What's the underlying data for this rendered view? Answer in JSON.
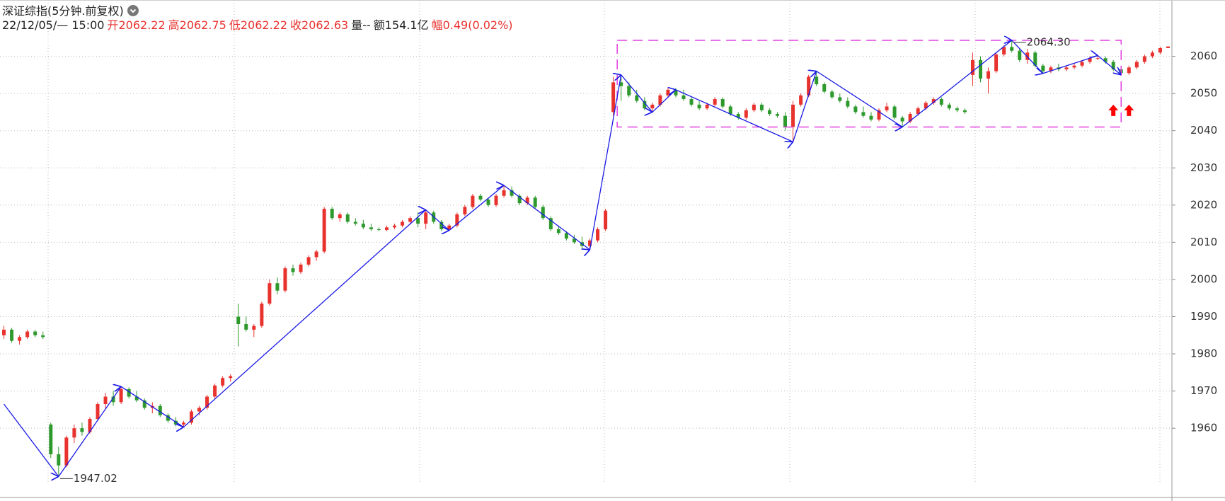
{
  "chart_data": {
    "type": "candlestick",
    "title": "深证综指(5分钟.前复权)",
    "time": "22/12/05/— 15:00",
    "info": [
      {
        "label": "开",
        "value": "2062.22",
        "color": "#e8322e"
      },
      {
        "label": "高",
        "value": "2062.75",
        "color": "#e8322e"
      },
      {
        "label": "低",
        "value": "2062.22",
        "color": "#e8322e"
      },
      {
        "label": "收",
        "value": "2062.63",
        "color": "#e8322e"
      },
      {
        "label": "量",
        "value": "--",
        "color": "#222222"
      },
      {
        "label": "额",
        "value": "154.1亿",
        "color": "#222222"
      },
      {
        "label": "幅",
        "value": "0.49(0.02%)",
        "color": "#e8322e"
      }
    ],
    "up_color": "#e8322e",
    "down_color": "#2e9a2e",
    "ylim": [
      1945,
      2074
    ],
    "yticks": [
      1960,
      1970,
      1980,
      1990,
      2000,
      2010,
      2020,
      2030,
      2040,
      2050,
      2060
    ],
    "grid": true,
    "ohlc": [
      [
        1985,
        1987.5,
        1984,
        1986.5
      ],
      [
        1986.5,
        1987,
        1983,
        1983.5
      ],
      [
        1983.5,
        1985,
        1982.5,
        1984.5
      ],
      [
        1984.5,
        1986.5,
        1984,
        1986
      ],
      [
        1986,
        1986.5,
        1984.5,
        1985
      ],
      [
        1985,
        1986,
        1984,
        1984.5
      ],
      [
        1961,
        1961.5,
        1952,
        1953
      ],
      [
        1953,
        1955,
        1947.02,
        1950
      ],
      [
        1950,
        1958,
        1949.5,
        1957.5
      ],
      [
        1957.5,
        1961,
        1956,
        1960
      ],
      [
        1960,
        1961.5,
        1958,
        1959
      ],
      [
        1959,
        1963,
        1958.5,
        1962.5
      ],
      [
        1962.5,
        1967,
        1962,
        1966.5
      ],
      [
        1966.5,
        1969.5,
        1965,
        1968.5
      ],
      [
        1968.5,
        1970,
        1966,
        1967
      ],
      [
        1967,
        1971.2,
        1966.5,
        1970.5
      ],
      [
        1970.5,
        1971,
        1968,
        1968.5
      ],
      [
        1968.5,
        1970,
        1967,
        1967.5
      ],
      [
        1967.5,
        1968,
        1965,
        1965.5
      ],
      [
        1965.5,
        1967,
        1964,
        1966
      ],
      [
        1966,
        1966.5,
        1963,
        1963.5
      ],
      [
        1963.5,
        1964,
        1961.5,
        1962
      ],
      [
        1962,
        1963,
        1960.5,
        1961
      ],
      [
        1961,
        1962,
        1960.3,
        1961.5
      ],
      [
        1961.5,
        1965,
        1961,
        1964.5
      ],
      [
        1964.5,
        1966,
        1963.5,
        1965.5
      ],
      [
        1965.5,
        1969,
        1965,
        1968.5
      ],
      [
        1968.5,
        1972,
        1968,
        1971.5
      ],
      [
        1971.5,
        1974,
        1971,
        1973.5
      ],
      [
        1973.5,
        1974.5,
        1972.5,
        1974
      ],
      [
        1990,
        1993.5,
        1982,
        1988
      ],
      [
        1988,
        1990,
        1986,
        1986.5
      ],
      [
        1986.5,
        1988,
        1984.5,
        1987.5
      ],
      [
        1987.5,
        1994,
        1987,
        1993.5
      ],
      [
        1993.5,
        2000,
        1993,
        1999
      ],
      [
        1999,
        2000.5,
        1996,
        1997
      ],
      [
        1997,
        2003.5,
        1996.5,
        2003
      ],
      [
        2003,
        2004,
        2001,
        2002
      ],
      [
        2002,
        2004.5,
        2001.5,
        2004
      ],
      [
        2004,
        2006.5,
        2003.5,
        2006
      ],
      [
        2006,
        2008,
        2005,
        2007.5
      ],
      [
        2007.5,
        2019.5,
        2007,
        2019
      ],
      [
        2019,
        2019.5,
        2016,
        2016.5
      ],
      [
        2016.5,
        2018,
        2015.5,
        2017.5
      ],
      [
        2017.5,
        2018,
        2015,
        2015.5
      ],
      [
        2015.5,
        2016.5,
        2014.5,
        2015
      ],
      [
        2015,
        2016,
        2013.5,
        2014
      ],
      [
        2014,
        2015,
        2013,
        2013.5
      ],
      [
        2013.5,
        2014,
        2013,
        2013.3
      ],
      [
        2013.3,
        2014.5,
        2013,
        2014
      ],
      [
        2014,
        2015,
        2013.5,
        2014.5
      ],
      [
        2014.5,
        2016,
        2014,
        2015.5
      ],
      [
        2015.5,
        2017,
        2015,
        2016.5
      ],
      [
        2016.5,
        2018,
        2014,
        2015
      ],
      [
        2015,
        2018.7,
        2013.5,
        2018
      ],
      [
        2018,
        2018.5,
        2015,
        2015.5
      ],
      [
        2015.5,
        2016,
        2013,
        2013.5
      ],
      [
        2013.5,
        2015,
        2013.2,
        2014.5
      ],
      [
        2014.5,
        2018,
        2014,
        2017.5
      ],
      [
        2017.5,
        2020,
        2017,
        2019.5
      ],
      [
        2019.5,
        2023,
        2019,
        2022.5
      ],
      [
        2022.5,
        2023,
        2021,
        2021.5
      ],
      [
        2021.5,
        2022,
        2019.5,
        2020
      ],
      [
        2020,
        2023,
        2019.5,
        2022.5
      ],
      [
        2022.5,
        2025.3,
        2022,
        2024
      ],
      [
        2024,
        2025,
        2022,
        2022.5
      ],
      [
        2022.5,
        2023,
        2020,
        2020.5
      ],
      [
        2020.5,
        2022.5,
        2020,
        2022
      ],
      [
        2022,
        2022.5,
        2019,
        2019.5
      ],
      [
        2019.5,
        2020,
        2016,
        2016.5
      ],
      [
        2016.5,
        2017,
        2013,
        2013.5
      ],
      [
        2013.5,
        2014.5,
        2012,
        2012.5
      ],
      [
        2012.5,
        2013,
        2010.5,
        2011
      ],
      [
        2011,
        2012,
        2009.5,
        2010
      ],
      [
        2010,
        2011.5,
        2008,
        2009
      ],
      [
        2009,
        2011,
        2008,
        2010.5
      ],
      [
        2010.5,
        2014,
        2010,
        2013.5
      ],
      [
        2013.5,
        2019,
        2013,
        2018.5
      ],
      [
        2045,
        2054.5,
        2044,
        2053
      ],
      [
        2053,
        2055,
        2048,
        2052
      ],
      [
        2052,
        2053,
        2049,
        2049.5
      ],
      [
        2049.5,
        2051,
        2047.5,
        2048
      ],
      [
        2048,
        2049,
        2045.5,
        2046
      ],
      [
        2046,
        2047.5,
        2045,
        2047
      ],
      [
        2047,
        2050,
        2046.5,
        2049.5
      ],
      [
        2049.5,
        2051.5,
        2049,
        2051
      ],
      [
        2051,
        2051.5,
        2049,
        2049.5
      ],
      [
        2049.5,
        2051,
        2048,
        2048.5
      ],
      [
        2048.5,
        2049,
        2046.5,
        2047
      ],
      [
        2047,
        2048,
        2045.5,
        2046
      ],
      [
        2046,
        2047.5,
        2045.5,
        2047
      ],
      [
        2047,
        2049,
        2046.5,
        2048.5
      ],
      [
        2048.5,
        2049,
        2046,
        2046.5
      ],
      [
        2046.5,
        2047,
        2044,
        2044.5
      ],
      [
        2044.5,
        2045,
        2043,
        2043.5
      ],
      [
        2043.5,
        2046,
        2043,
        2045.5
      ],
      [
        2045.5,
        2047.5,
        2045,
        2047
      ],
      [
        2047,
        2047.5,
        2045,
        2045.5
      ],
      [
        2045.5,
        2046,
        2044,
        2044.5
      ],
      [
        2044.5,
        2045,
        2043.5,
        2044
      ],
      [
        2044,
        2045,
        2040,
        2041
      ],
      [
        2041,
        2048,
        2037,
        2047
      ],
      [
        2047,
        2050,
        2046.5,
        2049.5
      ],
      [
        2049.5,
        2055,
        2049,
        2054.5
      ],
      [
        2054.5,
        2056,
        2052,
        2052.5
      ],
      [
        2052.5,
        2053,
        2050,
        2050.5
      ],
      [
        2050.5,
        2051,
        2048.5,
        2049
      ],
      [
        2049,
        2050,
        2047.5,
        2048
      ],
      [
        2048,
        2049,
        2046,
        2046.5
      ],
      [
        2046.5,
        2047,
        2044.5,
        2045
      ],
      [
        2045,
        2046.5,
        2043.5,
        2044
      ],
      [
        2044,
        2045,
        2042.5,
        2043
      ],
      [
        2043,
        2046,
        2042.5,
        2045.5
      ],
      [
        2045.5,
        2047.5,
        2045,
        2046.5
      ],
      [
        2046.5,
        2047,
        2043,
        2043.5
      ],
      [
        2043.5,
        2044,
        2041,
        2042.5
      ],
      [
        2042.5,
        2045,
        2042,
        2044.5
      ],
      [
        2044.5,
        2046.5,
        2044,
        2046
      ],
      [
        2046,
        2048,
        2045.5,
        2047.5
      ],
      [
        2047.5,
        2049,
        2047,
        2048.5
      ],
      [
        2048.5,
        2049,
        2046.5,
        2047
      ],
      [
        2047,
        2047.5,
        2045.5,
        2046
      ],
      [
        2046,
        2046.5,
        2045,
        2045.5
      ],
      [
        2045.5,
        2046,
        2044.5,
        2045
      ],
      [
        2055,
        2061,
        2052,
        2059
      ],
      [
        2059,
        2060,
        2053,
        2054
      ],
      [
        2054,
        2057,
        2050,
        2056
      ],
      [
        2056,
        2061,
        2055.5,
        2060.5
      ],
      [
        2060.5,
        2063,
        2060,
        2062.5
      ],
      [
        2062.5,
        2064.3,
        2061,
        2061.5
      ],
      [
        2061.5,
        2062,
        2058.5,
        2059
      ],
      [
        2059,
        2062,
        2058,
        2061
      ],
      [
        2061,
        2061.5,
        2057,
        2057.5
      ],
      [
        2057.5,
        2058,
        2055.4,
        2056
      ],
      [
        2056,
        2057.5,
        2055.5,
        2057
      ],
      [
        2057,
        2058,
        2056,
        2056.5
      ],
      [
        2056.5,
        2057.5,
        2056,
        2057
      ],
      [
        2057,
        2058,
        2056.5,
        2057.5
      ],
      [
        2057.5,
        2059,
        2057,
        2058.5
      ],
      [
        2058.5,
        2060,
        2058,
        2059.5
      ],
      [
        2059.5,
        2060.2,
        2059,
        2059.5
      ],
      [
        2059.5,
        2060,
        2058,
        2058.5
      ],
      [
        2058.5,
        2059,
        2056,
        2056.5
      ],
      [
        2056.5,
        2057,
        2055,
        2055.5
      ],
      [
        2055.5,
        2057.5,
        2055,
        2057
      ],
      [
        2057,
        2059,
        2056.5,
        2058.5
      ],
      [
        2058.5,
        2060.5,
        2058,
        2060
      ],
      [
        2060,
        2061.5,
        2059.5,
        2061
      ],
      [
        2061,
        2062.5,
        2060.5,
        2062.22
      ],
      [
        2062.22,
        2062.75,
        2062.22,
        2062.63
      ]
    ],
    "zigzag": {
      "color": "#1a1ae6",
      "x": [
        0,
        7,
        15,
        23,
        54,
        57,
        64,
        75,
        79,
        83,
        86,
        101,
        104,
        115,
        129,
        133,
        140,
        143
      ],
      "values": [
        1966.5,
        1947.02,
        1971.2,
        1960.3,
        2018.7,
        2013.2,
        2025.3,
        2008,
        2055,
        2045,
        2051,
        2037,
        2056,
        2041,
        2064.3,
        2055.4,
        2060.2,
        2055
      ],
      "value_labels": [
        null,
        "1947.02",
        null,
        null,
        null,
        null,
        null,
        null,
        null,
        null,
        null,
        null,
        null,
        null,
        "2064.30",
        null,
        null,
        null
      ]
    },
    "box": {
      "color": "#e040e0",
      "x": [
        78.5,
        143
      ],
      "y": [
        2041,
        2064.3
      ]
    },
    "signals": {
      "color": "#ff0000",
      "x": [
        142,
        144
      ],
      "values": [
        2047,
        2047
      ]
    }
  }
}
